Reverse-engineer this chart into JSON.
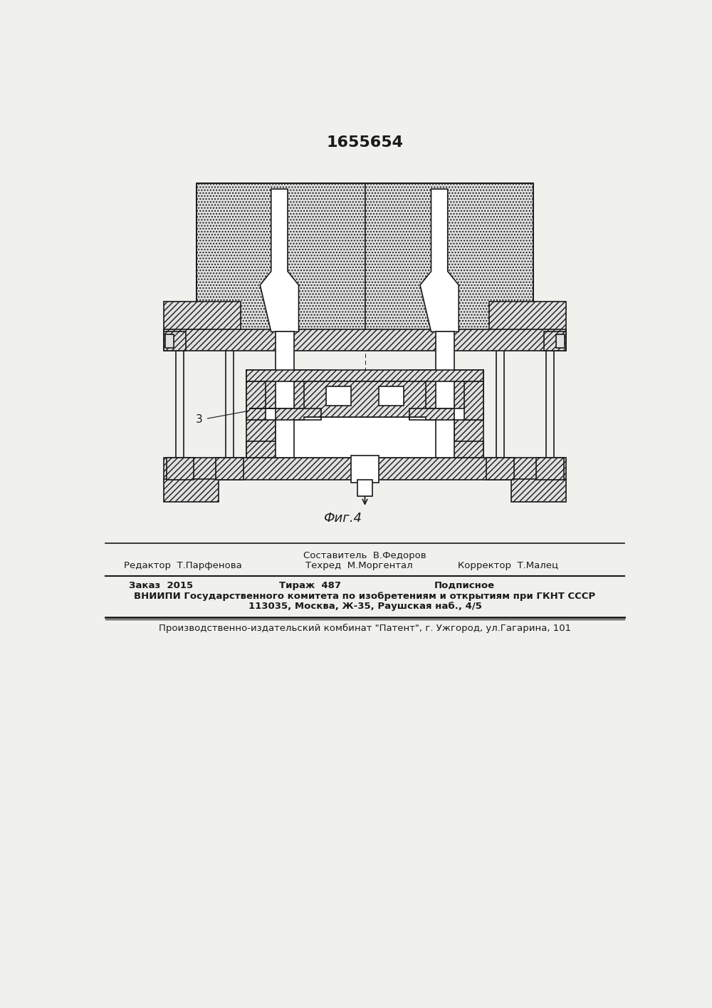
{
  "patent_number": "1655654",
  "fig_label": "Фиг.4",
  "label_3": "3",
  "editor_line1": "Составитель  В.Федоров",
  "editor_line2_left": "Редактор  Т.Парфенова",
  "editor_line2_mid": "Техред  М.Моргентал",
  "editor_line2_right": "Корректор  Т.Малец",
  "order_left": "Заказ  2015",
  "order_mid": "Тираж  487",
  "order_right": "Подписное",
  "vniiipi_line": "ВНИИПИ Государственного комитета по изобретениям и открытиям при ГКНТ СССР",
  "address_line": "113035, Москва, Ж-35, Раушская наб., 4/5",
  "publisher_line": "Производственно-издательский комбинат \"Патент\", г. Ужгород, ул.Гагарина, 101",
  "bg_color": "#f0f0ec",
  "line_color": "#1a1a1a"
}
